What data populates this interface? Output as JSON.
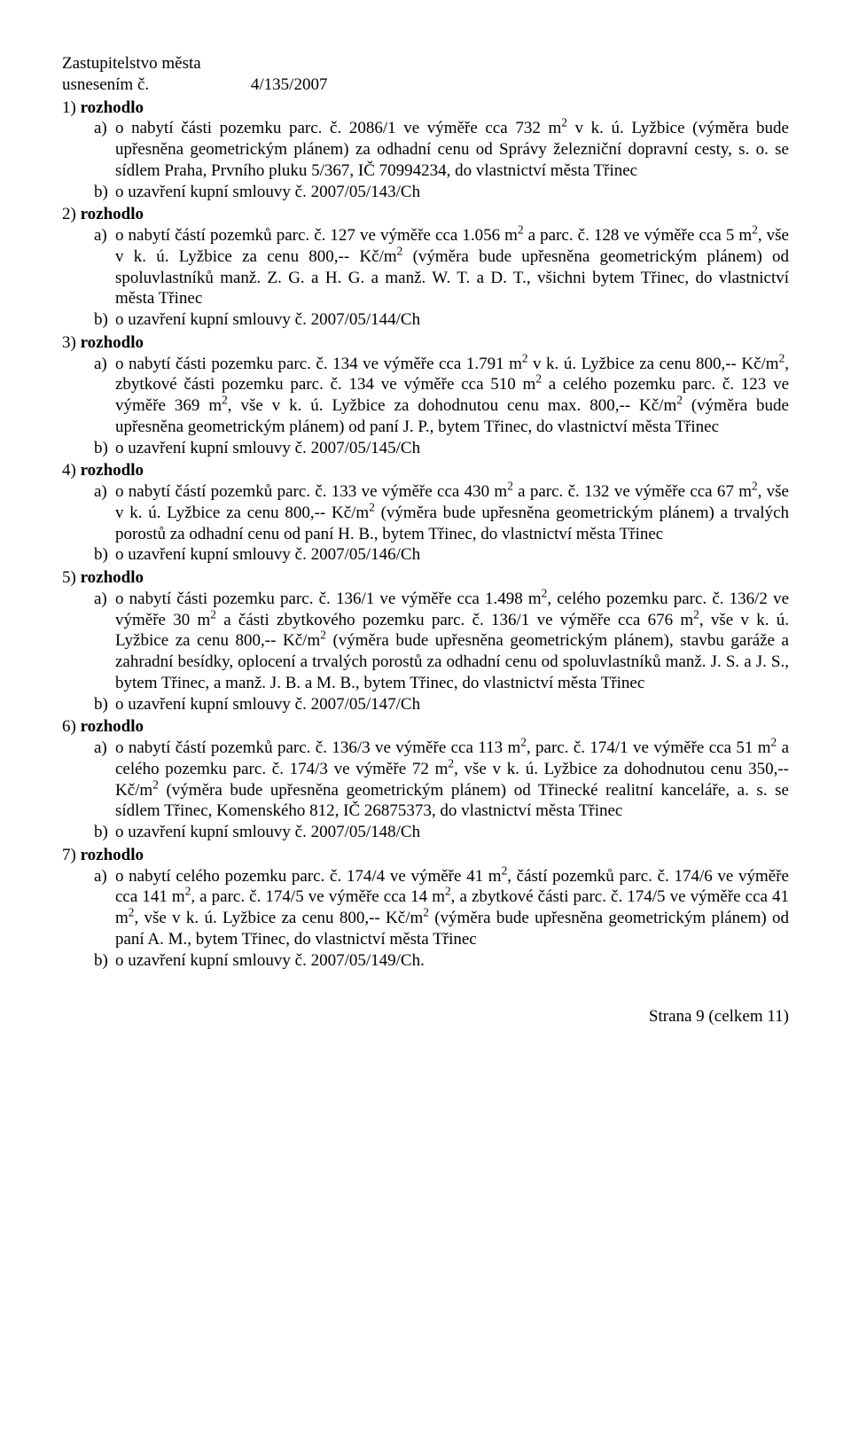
{
  "header": {
    "line1": "Zastupitelstvo města",
    "line2_left": "usnesením č.",
    "line2_right": "4/135/2007"
  },
  "sections": [
    {
      "num": "1)",
      "verb": "rozhodlo",
      "items": [
        {
          "m": "a)",
          "t": "o nabytí části pozemku parc. č. 2086/1 ve výměře cca 732 m<sup>2</sup> v k. ú. Lyžbice (výměra bude upřesněna geometrickým plánem) za odhadní cenu od Správy železniční dopravní cesty, s. o. se sídlem Praha, Prvního pluku 5/367, IČ 70994234, do vlastnictví města Třinec"
        },
        {
          "m": "b)",
          "t": "o uzavření kupní smlouvy č. 2007/05/143/Ch"
        }
      ]
    },
    {
      "num": "2)",
      "verb": "rozhodlo",
      "items": [
        {
          "m": "a)",
          "t": "o nabytí částí pozemků parc. č. 127 ve výměře cca 1.056 m<sup>2</sup> a parc. č. 128 ve výměře cca 5 m<sup>2</sup>, vše v k. ú. Lyžbice za cenu 800,-- Kč/m<sup>2</sup> (výměra bude upřesněna geometrickým plánem) od spoluvlastníků manž. Z. G. a H. G. a manž. W. T. a D. T., všichni bytem Třinec, do vlastnictví města Třinec"
        },
        {
          "m": "b)",
          "t": "o uzavření kupní smlouvy č. 2007/05/144/Ch"
        }
      ]
    },
    {
      "num": "3)",
      "verb": "rozhodlo",
      "items": [
        {
          "m": "a)",
          "t": "o nabytí části pozemku parc. č. 134 ve výměře cca 1.791 m<sup>2</sup> v k. ú. Lyžbice za cenu 800,-- Kč/m<sup>2</sup>, zbytkové části pozemku parc. č. 134 ve výměře cca 510 m<sup>2</sup> a celého pozemku parc. č. 123 ve výměře 369 m<sup>2</sup>, vše v k. ú. Lyžbice za dohodnutou cenu max. 800,-- Kč/m<sup>2</sup> (výměra bude upřesněna geometrickým plánem) od paní J. P., bytem Třinec, do vlastnictví města Třinec"
        },
        {
          "m": "b)",
          "t": "o uzavření kupní smlouvy č. 2007/05/145/Ch"
        }
      ]
    },
    {
      "num": "4)",
      "verb": "rozhodlo",
      "items": [
        {
          "m": "a)",
          "t": "o nabytí částí pozemků parc. č. 133 ve výměře cca 430 m<sup>2</sup> a parc. č. 132 ve výměře cca 67 m<sup>2</sup>, vše v k. ú. Lyžbice za cenu 800,-- Kč/m<sup>2</sup> (výměra bude upřesněna geometrickým plánem) a trvalých porostů za odhadní cenu od paní H. B., bytem Třinec, do vlastnictví města Třinec"
        },
        {
          "m": "b)",
          "t": "o uzavření kupní smlouvy č. 2007/05/146/Ch"
        }
      ]
    },
    {
      "num": "5)",
      "verb": "rozhodlo",
      "items": [
        {
          "m": "a)",
          "t": "o nabytí části pozemku parc. č. 136/1 ve výměře cca 1.498 m<sup>2</sup>, celého pozemku parc. č. 136/2 ve výměře 30 m<sup>2</sup> a části zbytkového pozemku parc. č. 136/1 ve výměře cca 676 m<sup>2</sup>, vše v k. ú. Lyžbice za cenu 800,-- Kč/m<sup>2</sup> (výměra bude upřesněna geometrickým plánem), stavbu garáže a zahradní besídky, oplocení a trvalých porostů za odhadní cenu od spoluvlastníků manž. J. S. a J. S., bytem Třinec, a manž. J. B. a M. B., bytem Třinec, do vlastnictví města Třinec"
        },
        {
          "m": "b)",
          "t": "o uzavření kupní smlouvy č. 2007/05/147/Ch"
        }
      ]
    },
    {
      "num": "6)",
      "verb": "rozhodlo",
      "items": [
        {
          "m": "a)",
          "t": "o nabytí částí pozemků parc. č. 136/3 ve výměře cca 113 m<sup>2</sup>, parc. č. 174/1 ve výměře cca 51 m<sup>2</sup> a celého pozemku parc. č. 174/3 ve výměře 72 m<sup>2</sup>, vše v k. ú. Lyžbice za dohodnutou cenu 350,-- Kč/m<sup>2</sup> (výměra bude upřesněna geometrickým plánem) od Třinecké realitní kanceláře, a. s. se sídlem Třinec, Komenského 812, IČ 26875373, do vlastnictví města Třinec"
        },
        {
          "m": "b)",
          "t": "o uzavření kupní smlouvy č. 2007/05/148/Ch"
        }
      ]
    },
    {
      "num": "7)",
      "verb": "rozhodlo",
      "items": [
        {
          "m": "a)",
          "t": "o nabytí celého pozemku parc. č. 174/4 ve výměře 41 m<sup>2</sup>, částí pozemků parc. č. 174/6 ve výměře cca 141 m<sup>2</sup>, a parc. č. 174/5 ve výměře cca 14 m<sup>2</sup>, a zbytkové části parc. č. 174/5 ve výměře cca 41 m<sup>2</sup>, vše v k. ú. Lyžbice za cenu 800,-- Kč/m<sup>2</sup> (výměra bude upřesněna geometrickým plánem) od paní A. M., bytem Třinec, do vlastnictví města Třinec"
        },
        {
          "m": "b)",
          "t": "o uzavření kupní smlouvy č. 2007/05/149/Ch."
        }
      ]
    }
  ],
  "footer": "Strana 9 (celkem 11)"
}
